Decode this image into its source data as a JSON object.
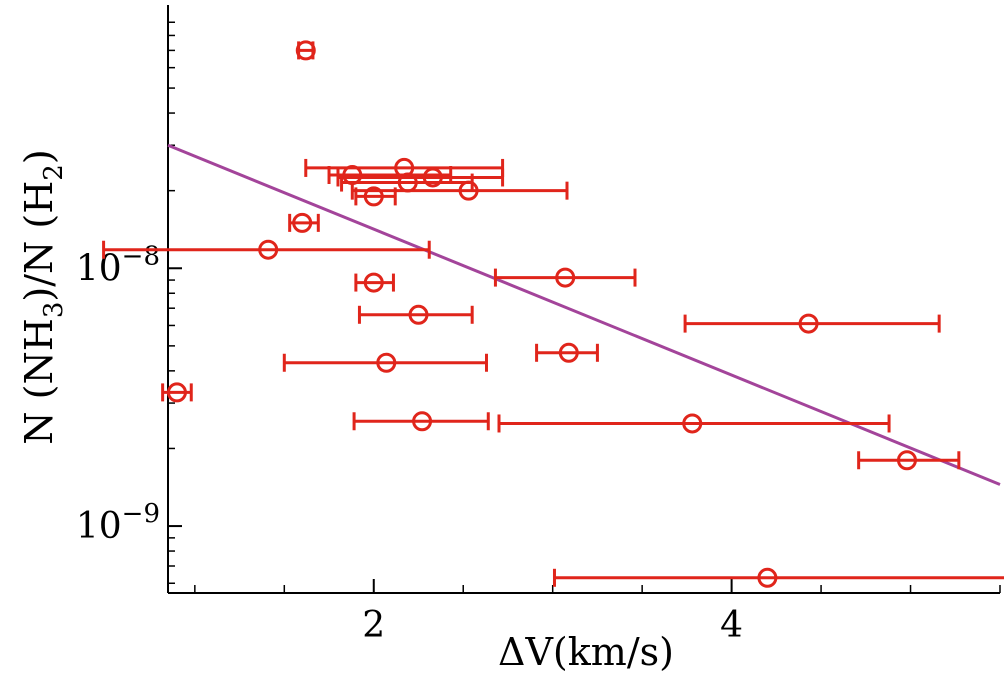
{
  "chart_data": {
    "type": "scatter",
    "title": "",
    "xlabel": "ΔV(km/s)",
    "ylabel": "N (NH3)/N (H2)",
    "ylabel_parts": [
      "N (NH",
      "3",
      ")/N (H",
      "2",
      ")"
    ],
    "xlim": [
      0.85,
      5.5
    ],
    "ylim": [
      5.5e-10,
      1.05e-07
    ],
    "yscale": "log",
    "xticks": [
      {
        "value": 2,
        "label": "2"
      },
      {
        "value": 4,
        "label": "4"
      }
    ],
    "yticks": [
      {
        "value": 1e-08,
        "base": "10",
        "exp": "−8"
      },
      {
        "value": 1e-09,
        "base": "10",
        "exp": "−9"
      }
    ],
    "grid": false,
    "colors": {
      "points": "#e0251b",
      "fit": "#a3449a",
      "axes": "#000000"
    },
    "points": [
      {
        "x": 1.62,
        "y": 7e-08,
        "xerr": [
          1.58,
          1.66
        ]
      },
      {
        "x": 1.88,
        "y": 2.3e-08,
        "xerr": [
          1.75,
          2.43
        ]
      },
      {
        "x": 2.17,
        "y": 2.45e-08,
        "xerr": [
          1.62,
          2.72
        ]
      },
      {
        "x": 2.33,
        "y": 2.25e-08,
        "xerr": [
          1.8,
          2.72
        ]
      },
      {
        "x": 2.19,
        "y": 2.15e-08,
        "xerr": [
          1.82,
          2.55
        ]
      },
      {
        "x": 2.53,
        "y": 2e-08,
        "xerr": [
          1.88,
          3.08
        ]
      },
      {
        "x": 2.0,
        "y": 1.9e-08,
        "xerr": [
          1.9,
          2.12
        ]
      },
      {
        "x": 1.6,
        "y": 1.5e-08,
        "xerr": [
          1.53,
          1.69
        ]
      },
      {
        "x": 1.41,
        "y": 1.18e-08,
        "xerr": [
          0.49,
          2.31
        ]
      },
      {
        "x": 2.0,
        "y": 8.8e-09,
        "xerr": [
          1.9,
          2.11
        ]
      },
      {
        "x": 3.07,
        "y": 9.2e-09,
        "xerr": [
          2.68,
          3.46
        ]
      },
      {
        "x": 2.25,
        "y": 6.6e-09,
        "xerr": [
          1.92,
          2.55
        ]
      },
      {
        "x": 4.43,
        "y": 6.1e-09,
        "xerr": [
          3.74,
          5.16
        ]
      },
      {
        "x": 3.09,
        "y": 4.7e-09,
        "xerr": [
          2.91,
          3.25
        ]
      },
      {
        "x": 2.07,
        "y": 4.3e-09,
        "xerr": [
          1.5,
          2.63
        ]
      },
      {
        "x": 0.9,
        "y": 3.3e-09,
        "xerr": [
          0.82,
          0.98
        ]
      },
      {
        "x": 2.27,
        "y": 2.55e-09,
        "xerr": [
          1.89,
          2.64
        ]
      },
      {
        "x": 3.78,
        "y": 2.5e-09,
        "xerr": [
          2.7,
          4.88
        ]
      },
      {
        "x": 4.98,
        "y": 1.8e-09,
        "xerr": [
          4.71,
          5.27
        ]
      },
      {
        "x": 4.2,
        "y": 6.3e-10,
        "xerr": [
          3.01,
          5.59
        ]
      }
    ],
    "fit_line": {
      "x": [
        0.85,
        5.5
      ],
      "y": [
        3e-08,
        1.45e-09
      ]
    }
  }
}
